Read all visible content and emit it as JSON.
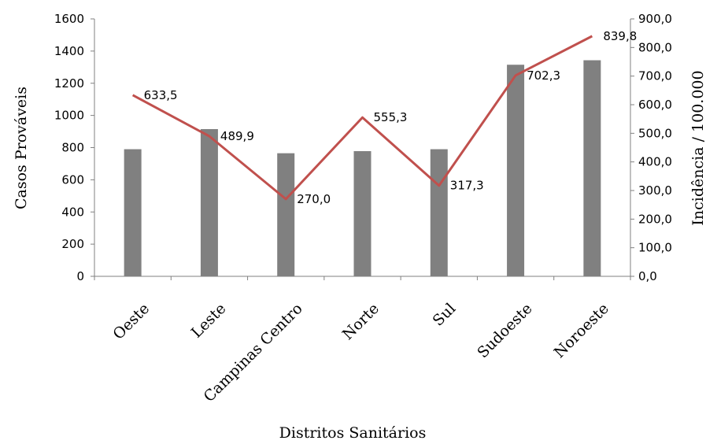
{
  "chart_data": {
    "type": "bar",
    "categories": [
      "Oeste",
      "Leste",
      "Campinas Centro",
      "Norte",
      "Sul",
      "Sudoeste",
      "Noroeste"
    ],
    "series": [
      {
        "type": "bar",
        "axis": "left",
        "values": [
          790,
          915,
          765,
          778,
          790,
          1315,
          1343
        ]
      },
      {
        "type": "line",
        "axis": "right",
        "values": [
          633.5,
          489.9,
          270.0,
          555.3,
          317.3,
          702.3,
          839.8
        ],
        "data_labels": [
          "633,5",
          "489,9",
          "270,0",
          "555,3",
          "317,3",
          "702,3",
          "839,8"
        ]
      }
    ],
    "xlabel": "Distritos Sanitários",
    "ylabel": "Casos Prováveis",
    "ylabel_right": "Incidência  / 100.000",
    "ylim": [
      0,
      1600
    ],
    "ylim_right": [
      0,
      900
    ],
    "yticks": [
      "0",
      "200",
      "400",
      "600",
      "800",
      "1000",
      "1200",
      "1400",
      "1600"
    ],
    "yticks_right": [
      "0,0",
      "100,0",
      "200,0",
      "300,0",
      "400,0",
      "500,0",
      "600,0",
      "700,0",
      "800,0",
      "900,0"
    ],
    "grid": false,
    "colors": {
      "bar": "#808080",
      "line": "#c0504d",
      "axis": "#808080"
    }
  }
}
